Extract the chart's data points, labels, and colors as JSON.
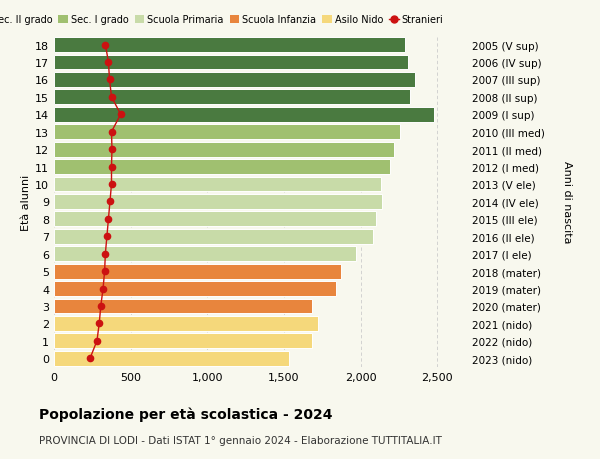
{
  "ages": [
    0,
    1,
    2,
    3,
    4,
    5,
    6,
    7,
    8,
    9,
    10,
    11,
    12,
    13,
    14,
    15,
    16,
    17,
    18
  ],
  "right_labels": [
    "2023 (nido)",
    "2022 (nido)",
    "2021 (nido)",
    "2020 (mater)",
    "2019 (mater)",
    "2018 (mater)",
    "2017 (I ele)",
    "2016 (II ele)",
    "2015 (III ele)",
    "2014 (IV ele)",
    "2013 (V ele)",
    "2012 (I med)",
    "2011 (II med)",
    "2010 (III med)",
    "2009 (I sup)",
    "2008 (II sup)",
    "2007 (III sup)",
    "2006 (IV sup)",
    "2005 (V sup)"
  ],
  "bar_values": [
    1530,
    1680,
    1720,
    1680,
    1840,
    1870,
    1970,
    2080,
    2100,
    2140,
    2130,
    2190,
    2220,
    2255,
    2480,
    2320,
    2355,
    2310,
    2290
  ],
  "stranieri_values": [
    235,
    280,
    295,
    305,
    320,
    330,
    335,
    345,
    355,
    365,
    375,
    375,
    378,
    375,
    435,
    375,
    362,
    355,
    335
  ],
  "bar_colors": [
    "#f5d87b",
    "#f5d87b",
    "#f5d87b",
    "#e8853d",
    "#e8853d",
    "#e8853d",
    "#c8dba8",
    "#c8dba8",
    "#c8dba8",
    "#c8dba8",
    "#c8dba8",
    "#a0c070",
    "#a0c070",
    "#a0c070",
    "#4a7a40",
    "#4a7a40",
    "#4a7a40",
    "#4a7a40",
    "#4a7a40"
  ],
  "legend_labels": [
    "Sec. II grado",
    "Sec. I grado",
    "Scuola Primaria",
    "Scuola Infanzia",
    "Asilo Nido",
    "Stranieri"
  ],
  "legend_colors": [
    "#4a7a40",
    "#a0c070",
    "#c8dba8",
    "#e8853d",
    "#f5d87b",
    "#cc1111"
  ],
  "title": "Popolazione per età scolastica - 2024",
  "subtitle": "PROVINCIA DI LODI - Dati ISTAT 1° gennaio 2024 - Elaborazione TUTTITALIA.IT",
  "ylabel_left": "Età alunni",
  "ylabel_right": "Anni di nascita",
  "xlim": [
    0,
    2700
  ],
  "xticks": [
    0,
    500,
    1000,
    1500,
    2000,
    2500
  ],
  "xtick_labels": [
    "0",
    "500",
    "1,000",
    "1,500",
    "2,000",
    "2,500"
  ],
  "background_color": "#f8f8ee",
  "stranieri_color": "#cc1111",
  "grid_color": "#cccccc"
}
